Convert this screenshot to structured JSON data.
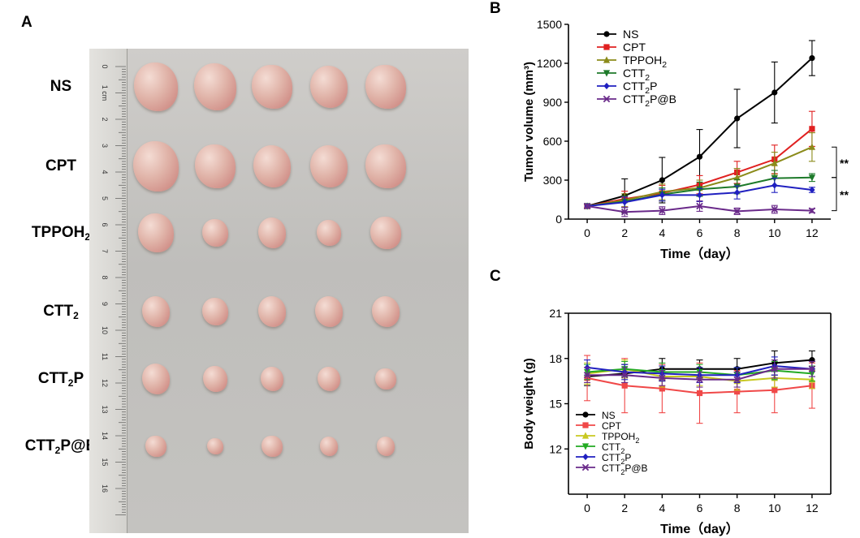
{
  "panels": {
    "a": "A",
    "b": "B",
    "c": "C"
  },
  "photo": {
    "row_labels": [
      {
        "main": "NS",
        "sub": "",
        "tail": ""
      },
      {
        "main": "CPT",
        "sub": "",
        "tail": ""
      },
      {
        "main": "TPPOH",
        "sub": "2",
        "tail": ""
      },
      {
        "main": "CTT",
        "sub": "2",
        "tail": ""
      },
      {
        "main": "CTT",
        "sub": "2",
        "tail": "P"
      },
      {
        "main": "CTT",
        "sub": "2",
        "tail": "P@B"
      }
    ],
    "ruler_labels": [
      "0",
      "1 cm",
      "2",
      "3",
      "4",
      "5",
      "6",
      "7",
      "8",
      "9",
      "10",
      "11",
      "12",
      "13",
      "14",
      "15",
      "16"
    ],
    "tumor_rows": [
      [
        1.0,
        0.95,
        0.9,
        0.85,
        0.9
      ],
      [
        1.05,
        0.9,
        0.85,
        0.85,
        0.9
      ],
      [
        0.8,
        0.55,
        0.6,
        0.5,
        0.65
      ],
      [
        0.6,
        0.55,
        0.6,
        0.6,
        0.6
      ],
      [
        0.6,
        0.5,
        0.45,
        0.45,
        0.4
      ],
      [
        0.4,
        0.3,
        0.4,
        0.35,
        0.35
      ]
    ],
    "tumor_color": "#e0b3a8",
    "tumor_highlight": "#f4dcd4",
    "tumor_blush": "#c97d78"
  },
  "chart_data": [
    {
      "type": "line",
      "xlabel": "Time（day）",
      "ylabel": "Tumor volume (mm³)",
      "ylim": [
        0,
        1500
      ],
      "yticks": [
        0,
        300,
        600,
        900,
        1200,
        1500
      ],
      "x": [
        0,
        2,
        4,
        6,
        8,
        10,
        12
      ],
      "series": [
        {
          "name": "NS",
          "sub": "",
          "tail": "",
          "color": "#000000",
          "marker": "circle",
          "values": [
            100,
            180,
            300,
            480,
            775,
            975,
            1240
          ],
          "errors": [
            15,
            130,
            175,
            210,
            225,
            235,
            135
          ]
        },
        {
          "name": "CPT",
          "sub": "",
          "tail": "",
          "color": "#e02020",
          "marker": "square",
          "values": [
            100,
            155,
            200,
            265,
            360,
            460,
            695
          ],
          "errors": [
            15,
            60,
            60,
            70,
            85,
            110,
            135
          ]
        },
        {
          "name": "TPPOH",
          "sub": "2",
          "tail": "",
          "color": "#8b8b1a",
          "marker": "triangle-up",
          "values": [
            100,
            145,
            210,
            240,
            320,
            430,
            555
          ],
          "errors": [
            15,
            50,
            60,
            60,
            70,
            85,
            110
          ]
        },
        {
          "name": "CTT",
          "sub": "2",
          "tail": "",
          "color": "#1d7a2a",
          "marker": "triangle-down",
          "values": [
            100,
            135,
            190,
            230,
            250,
            315,
            320
          ],
          "errors": [
            15,
            45,
            50,
            55,
            55,
            60,
            30
          ]
        },
        {
          "name": "CTT",
          "sub": "2",
          "tail": "P",
          "color": "#2020c0",
          "marker": "diamond",
          "values": [
            100,
            130,
            185,
            185,
            205,
            260,
            225
          ],
          "errors": [
            15,
            40,
            45,
            50,
            50,
            55,
            20
          ]
        },
        {
          "name": "CTT",
          "sub": "2",
          "tail": "P@B",
          "color": "#6a2a8a",
          "marker": "x",
          "values": [
            100,
            55,
            65,
            100,
            60,
            75,
            65
          ],
          "errors": [
            15,
            35,
            30,
            40,
            25,
            30,
            15
          ]
        }
      ],
      "annotations": [
        "**",
        "**"
      ]
    },
    {
      "type": "line",
      "xlabel": "Time（day）",
      "ylabel": "Body weight (g)",
      "ylim": [
        9,
        21
      ],
      "yticks": [
        12,
        15,
        18,
        21
      ],
      "x": [
        0,
        2,
        4,
        6,
        8,
        10,
        12
      ],
      "series": [
        {
          "name": "NS",
          "sub": "",
          "tail": "",
          "color": "#000000",
          "marker": "circle",
          "values": [
            16.8,
            17.0,
            17.3,
            17.3,
            17.3,
            17.7,
            17.9
          ],
          "errors": [
            0.6,
            0.6,
            0.7,
            0.6,
            0.7,
            0.8,
            0.6
          ]
        },
        {
          "name": "CPT",
          "sub": "",
          "tail": "",
          "color": "#f04848",
          "marker": "square",
          "values": [
            16.7,
            16.2,
            16.0,
            15.7,
            15.8,
            15.9,
            16.2
          ],
          "errors": [
            1.5,
            1.8,
            1.6,
            2.0,
            1.4,
            1.5,
            1.5
          ]
        },
        {
          "name": "TPPOH",
          "sub": "2",
          "tail": "",
          "color": "#c8c820",
          "marker": "triangle-up",
          "values": [
            17.0,
            17.3,
            16.8,
            16.8,
            16.5,
            16.7,
            16.6
          ],
          "errors": [
            0.7,
            0.6,
            0.7,
            0.6,
            0.6,
            0.6,
            0.6
          ]
        },
        {
          "name": "CTT",
          "sub": "2",
          "tail": "",
          "color": "#22aa22",
          "marker": "triangle-down",
          "values": [
            17.1,
            17.3,
            17.1,
            17.1,
            16.9,
            17.2,
            17.0
          ],
          "errors": [
            0.5,
            0.5,
            0.6,
            0.5,
            0.5,
            0.6,
            0.5
          ]
        },
        {
          "name": "CTT",
          "sub": "2",
          "tail": "P",
          "color": "#2020c0",
          "marker": "diamond",
          "values": [
            17.4,
            17.1,
            17.0,
            16.9,
            16.9,
            17.5,
            17.3
          ],
          "errors": [
            0.5,
            0.5,
            0.5,
            0.5,
            0.5,
            0.6,
            0.5
          ]
        },
        {
          "name": "CTT",
          "sub": "2",
          "tail": "P@B",
          "color": "#6a2a8a",
          "marker": "x",
          "values": [
            16.9,
            16.9,
            16.7,
            16.6,
            16.6,
            17.3,
            17.3
          ],
          "errors": [
            0.5,
            0.5,
            0.5,
            0.5,
            0.5,
            0.6,
            0.5
          ]
        }
      ]
    }
  ]
}
